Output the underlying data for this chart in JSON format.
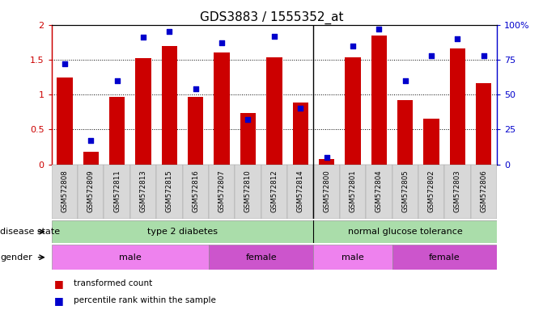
{
  "title": "GDS3883 / 1555352_at",
  "samples": [
    "GSM572808",
    "GSM572809",
    "GSM572811",
    "GSM572813",
    "GSM572815",
    "GSM572816",
    "GSM572807",
    "GSM572810",
    "GSM572812",
    "GSM572814",
    "GSM572800",
    "GSM572801",
    "GSM572804",
    "GSM572805",
    "GSM572802",
    "GSM572803",
    "GSM572806"
  ],
  "red_values": [
    1.25,
    0.18,
    0.97,
    1.52,
    1.7,
    0.97,
    1.6,
    0.73,
    1.53,
    0.88,
    0.08,
    1.53,
    1.85,
    0.92,
    0.65,
    1.66,
    1.16
  ],
  "blue_values": [
    72,
    17,
    60,
    91,
    95,
    54,
    87,
    32,
    92,
    40,
    5,
    85,
    97,
    60,
    78,
    90,
    78
  ],
  "bar_color": "#cc0000",
  "dot_color": "#0000cc",
  "ylim_left": [
    0,
    2.0
  ],
  "ylim_right": [
    0,
    100
  ],
  "yticks_left": [
    0,
    0.5,
    1.0,
    1.5,
    2.0
  ],
  "ytick_labels_left": [
    "0",
    "0.5",
    "1",
    "1.5",
    "2"
  ],
  "yticks_right": [
    0,
    25,
    50,
    75,
    100
  ],
  "ytick_labels_right": [
    "0",
    "25",
    "50",
    "75",
    "100%"
  ],
  "disease_groups": [
    {
      "label": "type 2 diabetes",
      "start": 0,
      "end": 10
    },
    {
      "label": "normal glucose tolerance",
      "start": 10,
      "end": 17
    }
  ],
  "disease_color": "#aaddaa",
  "gender_groups": [
    {
      "label": "male",
      "start": 0,
      "end": 6,
      "color": "#ee82ee"
    },
    {
      "label": "female",
      "start": 6,
      "end": 10,
      "color": "#cc55cc"
    },
    {
      "label": "male",
      "start": 10,
      "end": 13,
      "color": "#ee82ee"
    },
    {
      "label": "female",
      "start": 13,
      "end": 17,
      "color": "#cc55cc"
    }
  ],
  "legend_red_label": "transformed count",
  "legend_blue_label": "percentile rank within the sample",
  "disease_state_label": "disease state",
  "gender_label": "gender",
  "xtick_bg": "#d8d8d8",
  "separator_col": 10
}
